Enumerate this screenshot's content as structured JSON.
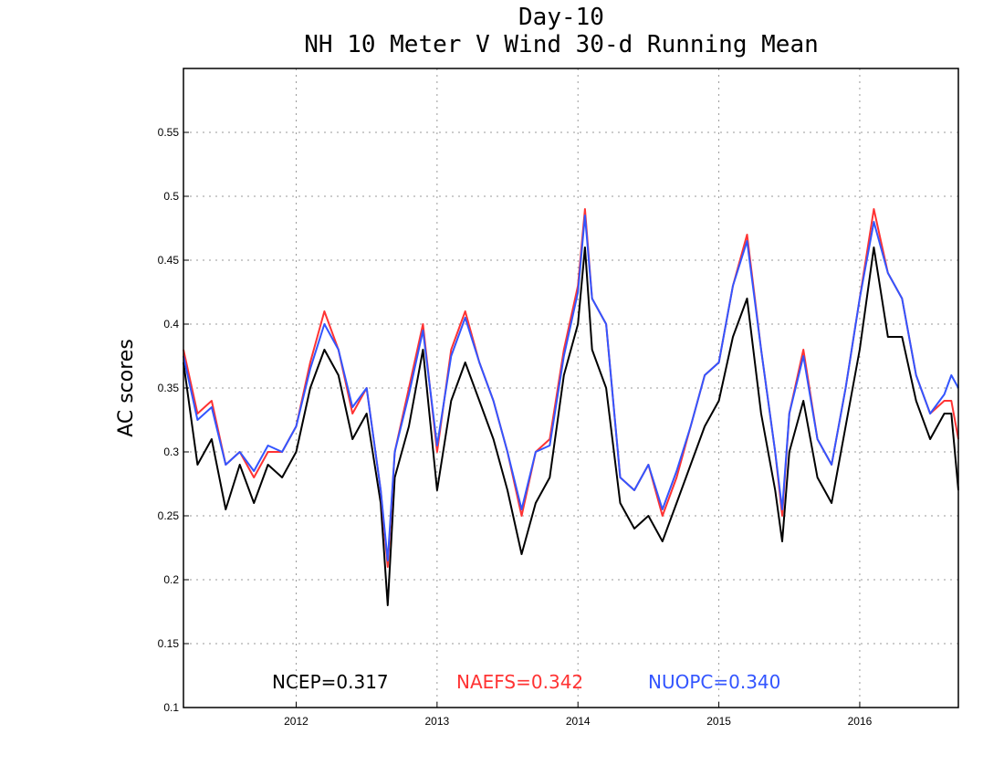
{
  "chart_data": {
    "type": "line",
    "title": "Day-10",
    "subtitle": "NH 10 Meter V Wind 30-d Running Mean",
    "ylabel": "AC scores",
    "xlabel": "",
    "ylim": [
      0.1,
      0.6
    ],
    "xlim": [
      2011.2,
      2016.7
    ],
    "yticks": [
      "0.1",
      "0.15",
      "0.2",
      "0.25",
      "0.3",
      "0.35",
      "0.4",
      "0.45",
      "0.5",
      "0.55"
    ],
    "xticks": [
      "2012",
      "2013",
      "2014",
      "2015",
      "2016"
    ],
    "grid": true,
    "x": [
      2011.2,
      2011.3,
      2011.4,
      2011.5,
      2011.6,
      2011.7,
      2011.8,
      2011.9,
      2012.0,
      2012.1,
      2012.2,
      2012.3,
      2012.4,
      2012.5,
      2012.6,
      2012.65,
      2012.7,
      2012.8,
      2012.9,
      2013.0,
      2013.1,
      2013.2,
      2013.3,
      2013.4,
      2013.5,
      2013.6,
      2013.7,
      2013.8,
      2013.9,
      2014.0,
      2014.05,
      2014.1,
      2014.2,
      2014.3,
      2014.4,
      2014.5,
      2014.6,
      2014.7,
      2014.8,
      2014.9,
      2015.0,
      2015.1,
      2015.2,
      2015.3,
      2015.4,
      2015.45,
      2015.5,
      2015.6,
      2015.7,
      2015.8,
      2015.9,
      2016.0,
      2016.1,
      2016.2,
      2016.3,
      2016.4,
      2016.5,
      2016.6,
      2016.65,
      2016.7
    ],
    "series": [
      {
        "name": "NCEP",
        "color": "#000000",
        "values": [
          0.37,
          0.29,
          0.31,
          0.255,
          0.29,
          0.26,
          0.29,
          0.28,
          0.3,
          0.35,
          0.38,
          0.36,
          0.31,
          0.33,
          0.26,
          0.18,
          0.28,
          0.32,
          0.38,
          0.27,
          0.34,
          0.37,
          0.34,
          0.31,
          0.27,
          0.22,
          0.26,
          0.28,
          0.36,
          0.4,
          0.46,
          0.38,
          0.35,
          0.26,
          0.24,
          0.25,
          0.23,
          0.26,
          0.29,
          0.32,
          0.34,
          0.39,
          0.42,
          0.33,
          0.27,
          0.23,
          0.3,
          0.34,
          0.28,
          0.26,
          0.32,
          0.38,
          0.46,
          0.39,
          0.39,
          0.34,
          0.31,
          0.33,
          0.33,
          0.27
        ]
      },
      {
        "name": "NAEFS",
        "color": "#ff3333",
        "values": [
          0.38,
          0.33,
          0.34,
          0.29,
          0.3,
          0.28,
          0.3,
          0.3,
          0.32,
          0.37,
          0.41,
          0.38,
          0.33,
          0.35,
          0.27,
          0.21,
          0.3,
          0.35,
          0.4,
          0.3,
          0.38,
          0.41,
          0.37,
          0.34,
          0.3,
          0.25,
          0.3,
          0.31,
          0.38,
          0.43,
          0.49,
          0.42,
          0.4,
          0.28,
          0.27,
          0.29,
          0.25,
          0.28,
          0.32,
          0.36,
          0.37,
          0.43,
          0.47,
          0.38,
          0.3,
          0.25,
          0.33,
          0.38,
          0.31,
          0.29,
          0.35,
          0.42,
          0.49,
          0.44,
          0.42,
          0.36,
          0.33,
          0.34,
          0.34,
          0.31
        ]
      },
      {
        "name": "NUOPC",
        "color": "#3355ff",
        "values": [
          0.375,
          0.325,
          0.335,
          0.29,
          0.3,
          0.285,
          0.305,
          0.3,
          0.32,
          0.365,
          0.4,
          0.38,
          0.335,
          0.35,
          0.27,
          0.215,
          0.3,
          0.345,
          0.395,
          0.305,
          0.375,
          0.405,
          0.37,
          0.34,
          0.3,
          0.255,
          0.3,
          0.305,
          0.375,
          0.425,
          0.485,
          0.42,
          0.4,
          0.28,
          0.27,
          0.29,
          0.255,
          0.285,
          0.32,
          0.36,
          0.37,
          0.43,
          0.465,
          0.38,
          0.3,
          0.255,
          0.33,
          0.375,
          0.31,
          0.29,
          0.35,
          0.42,
          0.48,
          0.44,
          0.42,
          0.36,
          0.33,
          0.345,
          0.36,
          0.35
        ]
      }
    ]
  },
  "stats": {
    "ncep": "NCEP=0.317",
    "naefs": "NAEFS=0.342",
    "nuopc": "NUOPC=0.340"
  }
}
